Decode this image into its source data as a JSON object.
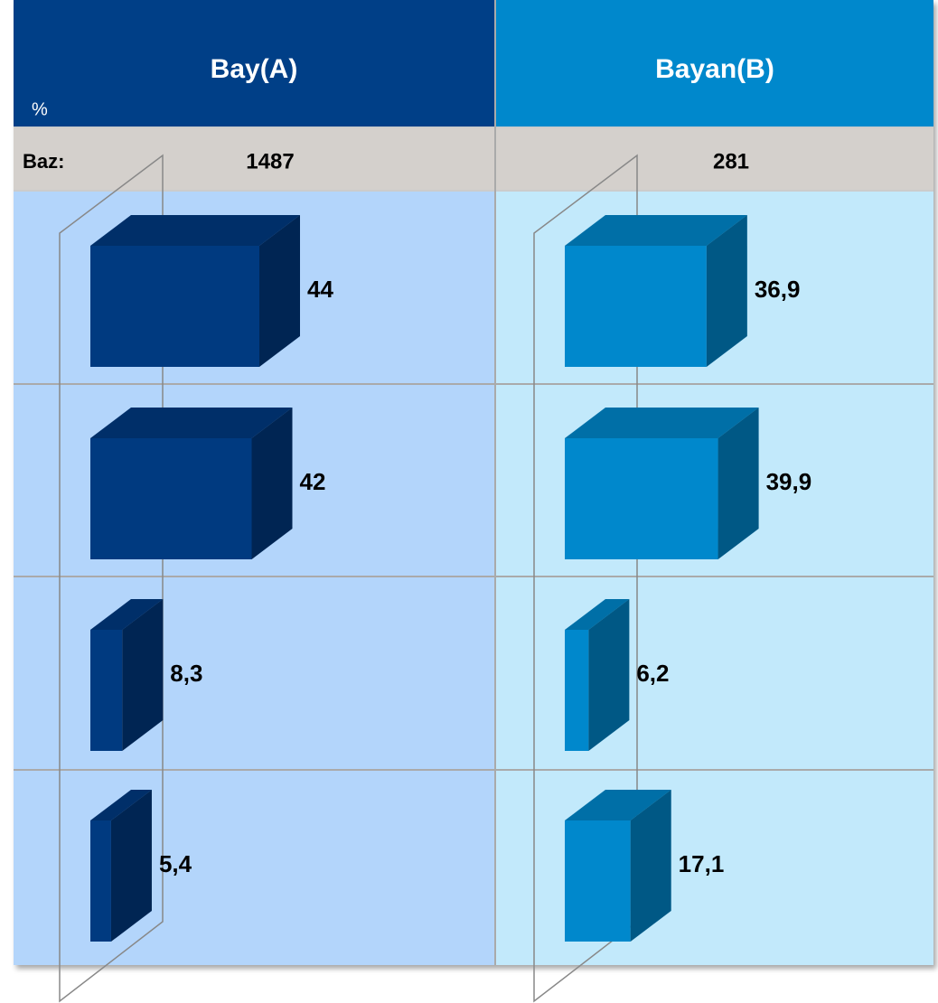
{
  "unit_label": "%",
  "base_label": "Baz:",
  "chart_data": [
    {
      "type": "bar3d",
      "title": "Bay(A)",
      "base": 1487,
      "values": [
        44,
        42,
        8.3,
        5.4
      ],
      "value_labels": [
        "44",
        "42",
        "8,3",
        "5,4"
      ],
      "color": "#003a80"
    },
    {
      "type": "bar3d",
      "title": "Bayan(B)",
      "base": 281,
      "values": [
        36.9,
        39.9,
        6.2,
        17.1
      ],
      "value_labels": [
        "36,9",
        "39,9",
        "6,2",
        "17,1"
      ],
      "color": "#0088cc"
    }
  ]
}
